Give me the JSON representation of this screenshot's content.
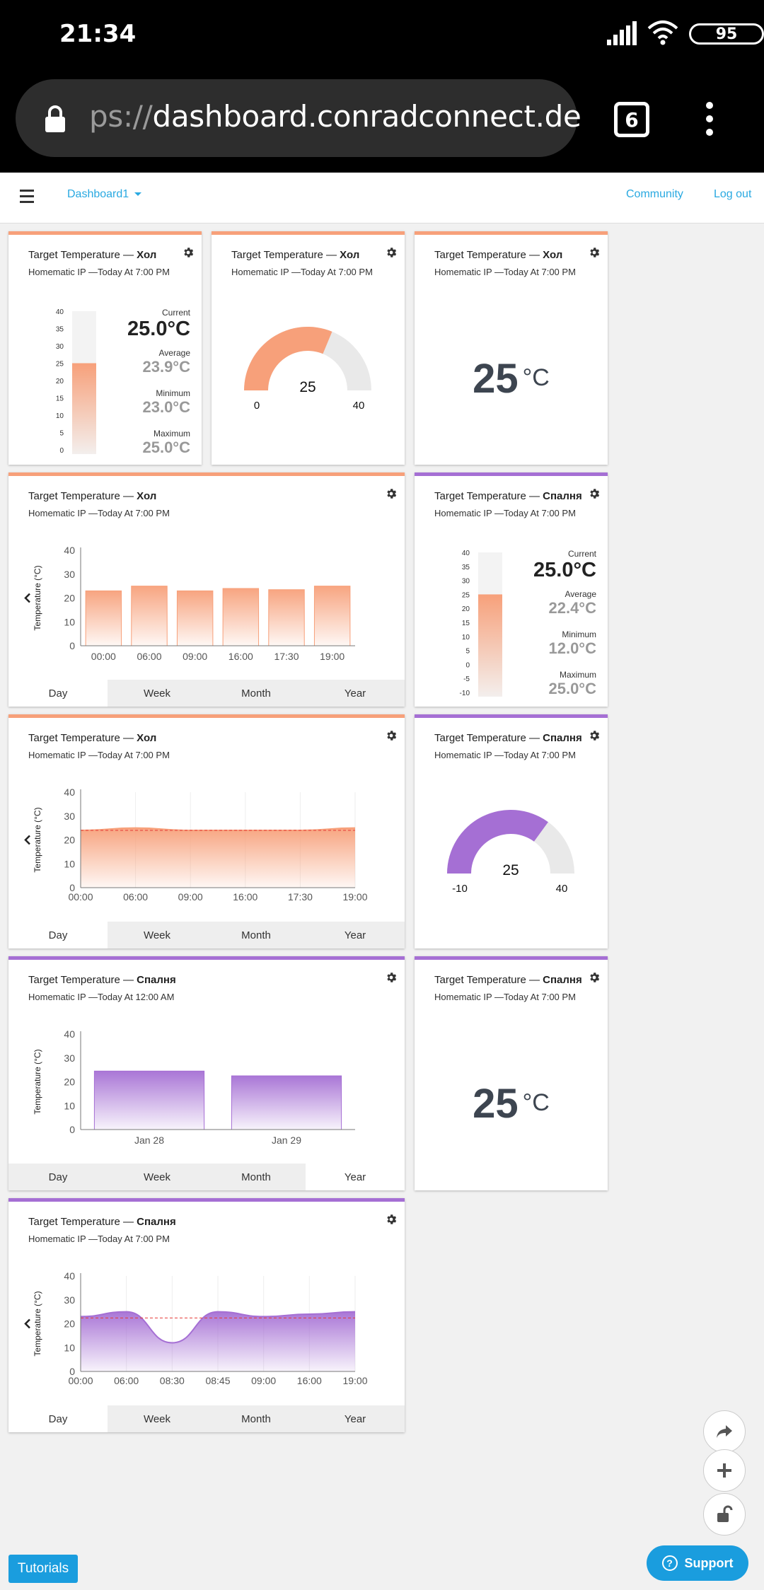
{
  "status_bar": {
    "time": "21:34",
    "battery": "95"
  },
  "browser": {
    "url_prefix": "ps://",
    "url_domain": "dashboard.conradconnect.de",
    "tab_count": "6"
  },
  "nav": {
    "dashboard": "Dashboard1",
    "community": "Community",
    "logout": "Log out"
  },
  "common": {
    "tabs": [
      "Day",
      "Week",
      "Month",
      "Year"
    ],
    "y_label": "Temperature (°C)"
  },
  "colors": {
    "orange": "#f7a07a",
    "purple": "#a56fd4",
    "accent": "#29a9e1"
  },
  "cards": {
    "c1": {
      "title_prefix": "Target Temperature — ",
      "title_room": "Хол",
      "subtitle": "Homematic IP —Today At 7:00 PM",
      "scale": [
        "40",
        "35",
        "30",
        "25",
        "20",
        "15",
        "10",
        "5",
        "0"
      ],
      "fill": 0.625,
      "stats": {
        "current_label": "Current",
        "current": "25.0°C",
        "average_label": "Average",
        "average": "23.9°C",
        "minimum_label": "Minimum",
        "minimum": "23.0°C",
        "maximum_label": "Maximum",
        "maximum": "25.0°C"
      }
    },
    "c2": {
      "title_prefix": "Target Temperature — ",
      "title_room": "Хол",
      "subtitle": "Homematic IP —Today At 7:00 PM",
      "gauge": {
        "value": "25",
        "min": "0",
        "max": "40",
        "fraction": 0.625
      }
    },
    "c3": {
      "title_prefix": "Target Temperature — ",
      "title_room": "Хол",
      "subtitle": "Homematic IP —Today At 7:00 PM",
      "value": "25",
      "unit": "°C"
    },
    "c4": {
      "title_prefix": "Target Temperature — ",
      "title_room": "Хол",
      "subtitle": "Homematic IP —Today At 7:00 PM",
      "active_tab": "Day"
    },
    "c5": {
      "title_prefix": "Target Temperature — ",
      "title_room": "Спалня",
      "subtitle": "Homematic IP —Today At 7:00 PM",
      "scale": [
        "40",
        "35",
        "30",
        "25",
        "20",
        "15",
        "10",
        "5",
        "0",
        "-5",
        "-10"
      ],
      "fill": 0.7,
      "stats": {
        "current_label": "Current",
        "current": "25.0°C",
        "average_label": "Average",
        "average": "22.4°C",
        "minimum_label": "Minimum",
        "minimum": "12.0°C",
        "maximum_label": "Maximum",
        "maximum": "25.0°C"
      }
    },
    "c6": {
      "title_prefix": "Target Temperature — ",
      "title_room": "Хол",
      "subtitle": "Homematic IP —Today At 7:00 PM",
      "active_tab": "Day"
    },
    "c7": {
      "title_prefix": "Target Temperature — ",
      "title_room": "Спалня",
      "subtitle": "Homematic IP —Today At 7:00 PM",
      "gauge": {
        "value": "25",
        "min": "-10",
        "max": "40",
        "fraction": 0.7
      }
    },
    "c8": {
      "title_prefix": "Target Temperature — ",
      "title_room": "Спалня",
      "subtitle": "Homematic IP —Today At 12:00 AM",
      "active_tab": "Year"
    },
    "c9": {
      "title_prefix": "Target Temperature — ",
      "title_room": "Спалня",
      "subtitle": "Homematic IP —Today At 7:00 PM",
      "value": "25",
      "unit": "°C"
    },
    "c10": {
      "title_prefix": "Target Temperature — ",
      "title_room": "Спалня",
      "subtitle": "Homematic IP —Today At 7:00 PM",
      "active_tab": "Day"
    }
  },
  "chart_data": [
    {
      "type": "bar",
      "title": "",
      "ylabel": "Temperature (°C)",
      "ylim": [
        0,
        40
      ],
      "yticks": [
        0,
        10,
        20,
        30,
        40
      ],
      "categories": [
        "00:00",
        "06:00",
        "09:00",
        "16:00",
        "17:30",
        "19:00"
      ],
      "values": [
        23,
        25,
        23,
        24,
        23.5,
        25
      ],
      "color": "#f7a07a"
    },
    {
      "type": "area",
      "title": "",
      "ylabel": "Temperature (°C)",
      "ylim": [
        0,
        40
      ],
      "yticks": [
        0,
        10,
        20,
        30,
        40
      ],
      "x": [
        "00:00",
        "06:00",
        "09:00",
        "16:00",
        "17:30",
        "19:00"
      ],
      "values": [
        24,
        25,
        24,
        24,
        24,
        25
      ],
      "average": 24,
      "color": "#f7a07a"
    },
    {
      "type": "bar",
      "title": "",
      "ylabel": "Temperature (°C)",
      "ylim": [
        0,
        40
      ],
      "yticks": [
        0,
        10,
        20,
        30,
        40
      ],
      "categories": [
        "Jan 28",
        "Jan 29"
      ],
      "values": [
        24.5,
        22.5
      ],
      "color": "#a56fd4"
    },
    {
      "type": "area",
      "title": "",
      "ylabel": "Temperature (°C)",
      "ylim": [
        0,
        40
      ],
      "yticks": [
        0,
        10,
        20,
        30,
        40
      ],
      "x": [
        "00:00",
        "06:00",
        "08:30",
        "08:45",
        "09:00",
        "16:00",
        "19:00"
      ],
      "values": [
        23,
        25,
        12,
        25,
        23,
        24,
        25
      ],
      "average": 22.4,
      "color": "#a56fd4"
    }
  ],
  "footer": {
    "tutorials": "Tutorials",
    "support": "Support"
  }
}
